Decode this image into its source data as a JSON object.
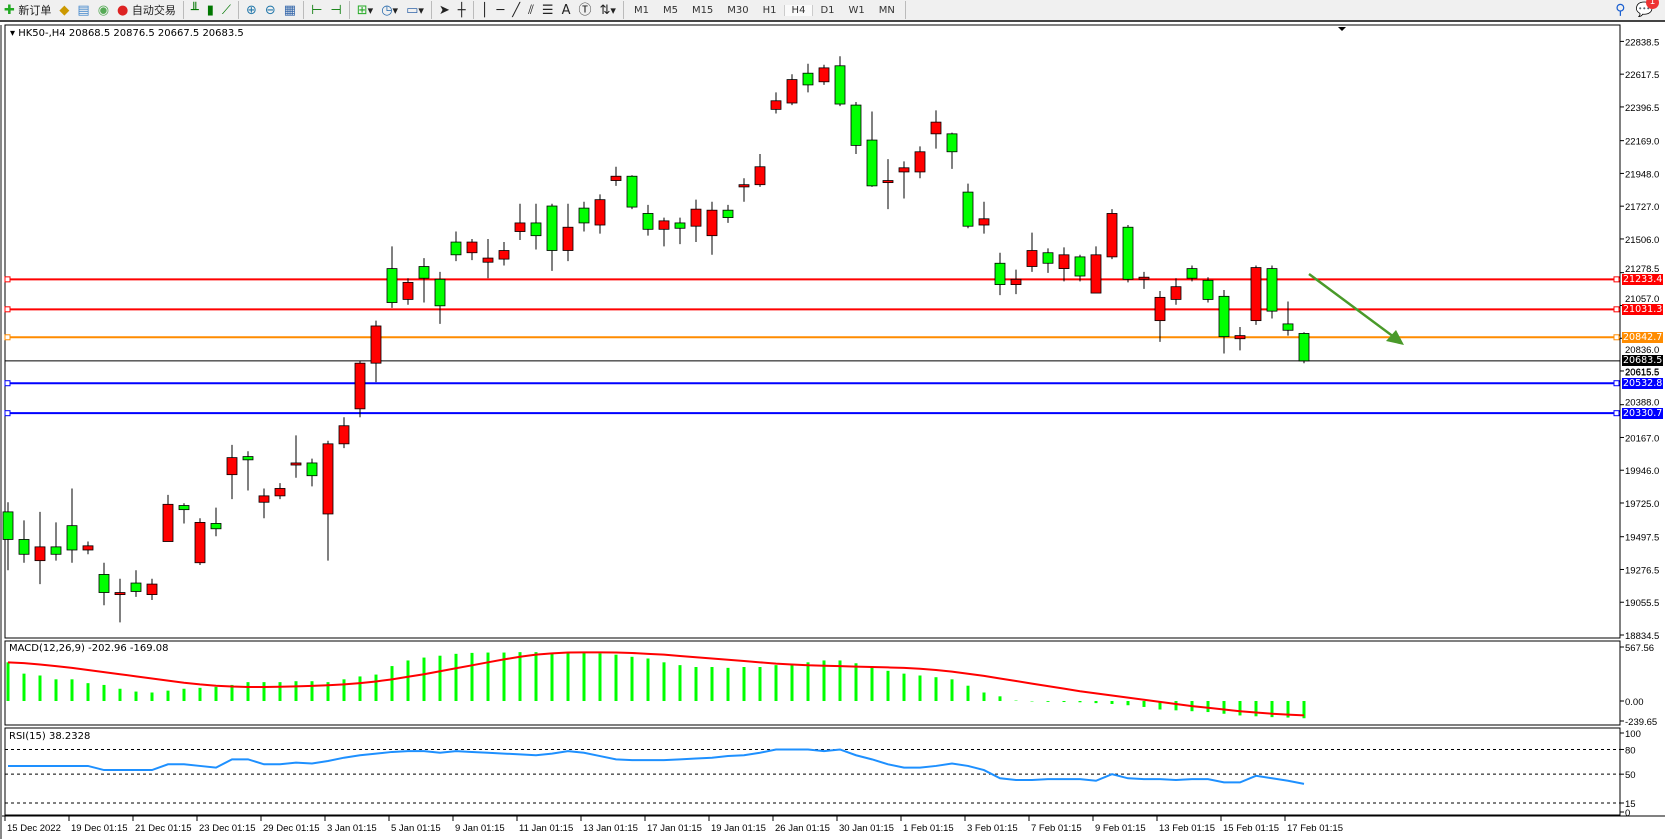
{
  "toolbar": {
    "new_order": "新订单",
    "auto_trading": "自动交易",
    "icons": [
      "new-order-icon",
      "expert-folder-icon",
      "terminal-icon",
      "signal-icon",
      "auto-trading-icon",
      "bar-chart-icon",
      "candle-chart-icon",
      "line-chart-icon",
      "zoom-in-icon",
      "zoom-out-icon",
      "tile-windows-icon",
      "autoscroll-icon",
      "chart-shift-icon",
      "new-chart-icon",
      "period-clock-icon",
      "templates-icon",
      "cursor-icon",
      "crosshair-icon",
      "vertical-line-icon",
      "horizontal-line-icon",
      "trendline-icon",
      "equidistant-channel-icon",
      "fibonacci-icon",
      "text-icon",
      "text-label-icon",
      "arrows-icon"
    ],
    "timeframes": [
      "M1",
      "M5",
      "M15",
      "M30",
      "H1",
      "H4",
      "D1",
      "W1",
      "MN"
    ],
    "selected_timeframe": "H4",
    "notification_count": "1"
  },
  "chart_data": {
    "type": "candlestick",
    "symbol_info": "HK50-,H4  20868.5 20876.5 20667.5 20683.5",
    "colors": {
      "bull": "#ff0000",
      "bear": "#00ff00",
      "background": "#ffffff"
    },
    "ylim": [
      18834.5,
      22838.5
    ],
    "price_ticks": [
      "22838.5",
      "22617.5",
      "22396.5",
      "22169.0",
      "21948.0",
      "21727.0",
      "21506.0",
      "21278.5",
      "21057.0",
      "20836.0",
      "20615.5",
      "20388.0",
      "20167.0",
      "19946.0",
      "19725.0",
      "19497.5",
      "19276.5",
      "19055.5",
      "18834.5"
    ],
    "date_labels": [
      "15 Dec 2022",
      "19 Dec 01:15",
      "21 Dec 01:15",
      "23 Dec 01:15",
      "29 Dec 01:15",
      "3 Jan 01:15",
      "5 Jan 01:15",
      "9 Jan 01:15",
      "11 Jan 01:15",
      "13 Jan 01:15",
      "17 Jan 01:15",
      "19 Jan 01:15",
      "26 Jan 01:15",
      "30 Jan 01:15",
      "1 Feb 01:15",
      "3 Feb 01:15",
      "7 Feb 01:15",
      "9 Feb 01:15",
      "13 Feb 01:15",
      "15 Feb 01:15",
      "17 Feb 01:15"
    ],
    "ohlc": [
      [
        19665,
        19730,
        19271,
        19479
      ],
      [
        19479,
        19608,
        19322,
        19379
      ],
      [
        19336,
        19665,
        19178,
        19429
      ],
      [
        19429,
        19594,
        19336,
        19379
      ],
      [
        19572,
        19823,
        19322,
        19408
      ],
      [
        19408,
        19465,
        19379,
        19436
      ],
      [
        19243,
        19322,
        19035,
        19121
      ],
      [
        19107,
        19214,
        18920,
        19121
      ],
      [
        19185,
        19271,
        19092,
        19128
      ],
      [
        19107,
        19214,
        19071,
        19178
      ],
      [
        19465,
        19780,
        19465,
        19716
      ],
      [
        19708,
        19723,
        19587,
        19680
      ],
      [
        19322,
        19622,
        19307,
        19594
      ],
      [
        19587,
        19694,
        19501,
        19551
      ],
      [
        19916,
        20117,
        19751,
        20031
      ],
      [
        20038,
        20074,
        19809,
        20016
      ],
      [
        19730,
        19823,
        19622,
        19773
      ],
      [
        19773,
        19859,
        19751,
        19823
      ],
      [
        19981,
        20181,
        19895,
        19995
      ],
      [
        19995,
        20024,
        19837,
        19909
      ],
      [
        19651,
        20145,
        19336,
        20124
      ],
      [
        20124,
        20303,
        20095,
        20246
      ],
      [
        20360,
        20682,
        20303,
        20668
      ],
      [
        20668,
        20955,
        20540,
        20919
      ],
      [
        21306,
        21456,
        21041,
        21077
      ],
      [
        21098,
        21241,
        21062,
        21213
      ],
      [
        21320,
        21377,
        21077,
        21241
      ],
      [
        21234,
        21284,
        20933,
        21055
      ],
      [
        21485,
        21556,
        21356,
        21399
      ],
      [
        21413,
        21506,
        21363,
        21485
      ],
      [
        21349,
        21506,
        21241,
        21377
      ],
      [
        21370,
        21485,
        21327,
        21428
      ],
      [
        21556,
        21743,
        21499,
        21614
      ],
      [
        21614,
        21743,
        21435,
        21528
      ],
      [
        21728,
        21743,
        21291,
        21428
      ],
      [
        21428,
        21743,
        21356,
        21585
      ],
      [
        21714,
        21757,
        21556,
        21614
      ],
      [
        21600,
        21807,
        21542,
        21771
      ],
      [
        21900,
        21993,
        21864,
        21929
      ],
      [
        21929,
        21936,
        21707,
        21721
      ],
      [
        21678,
        21736,
        21528,
        21571
      ],
      [
        21571,
        21650,
        21456,
        21628
      ],
      [
        21614,
        21650,
        21471,
        21578
      ],
      [
        21592,
        21771,
        21485,
        21707
      ],
      [
        21528,
        21757,
        21399,
        21700
      ],
      [
        21700,
        21736,
        21614,
        21650
      ],
      [
        21857,
        21915,
        21757,
        21872
      ],
      [
        21872,
        22079,
        21857,
        21993
      ],
      [
        22380,
        22495,
        22352,
        22438
      ],
      [
        22423,
        22617,
        22409,
        22581
      ],
      [
        22624,
        22688,
        22495,
        22545
      ],
      [
        22566,
        22681,
        22545,
        22660
      ],
      [
        22674,
        22738,
        22402,
        22416
      ],
      [
        22409,
        22430,
        22079,
        22137
      ],
      [
        22173,
        22366,
        21857,
        21864
      ],
      [
        21886,
        22044,
        21707,
        21900
      ],
      [
        21958,
        22029,
        21779,
        21986
      ],
      [
        21958,
        22130,
        21915,
        22094
      ],
      [
        22215,
        22373,
        22115,
        22294
      ],
      [
        22215,
        22223,
        21979,
        22094
      ],
      [
        21822,
        21879,
        21578,
        21592
      ],
      [
        21600,
        21757,
        21542,
        21642
      ],
      [
        21342,
        21413,
        21127,
        21198
      ],
      [
        21198,
        21299,
        21134,
        21234
      ],
      [
        21320,
        21549,
        21284,
        21428
      ],
      [
        21413,
        21442,
        21277,
        21342
      ],
      [
        21306,
        21449,
        21220,
        21399
      ],
      [
        21385,
        21399,
        21220,
        21256
      ],
      [
        21141,
        21456,
        21141,
        21399
      ],
      [
        21385,
        21707,
        21370,
        21678
      ],
      [
        21585,
        21600,
        21213,
        21234
      ],
      [
        21234,
        21284,
        21169,
        21248
      ],
      [
        20955,
        21155,
        20812,
        21112
      ],
      [
        21098,
        21241,
        21062,
        21184
      ],
      [
        21306,
        21327,
        21220,
        21241
      ],
      [
        21227,
        21248,
        21077,
        21098
      ],
      [
        21119,
        21162,
        20733,
        20847
      ],
      [
        20833,
        20912,
        20754,
        20854
      ],
      [
        20955,
        21327,
        20926,
        21313
      ],
      [
        21306,
        21327,
        20969,
        21019
      ],
      [
        20933,
        21084,
        20854,
        20890
      ],
      [
        20868.5,
        20876.5,
        20667.5,
        20683.5
      ]
    ],
    "horizontal_lines": [
      {
        "price": "21233.4",
        "color": "#ff0000"
      },
      {
        "price": "21031.3",
        "color": "#ff0000"
      },
      {
        "price": "20842.7",
        "color": "#ff8c00"
      },
      {
        "price": "20683.5",
        "color": "#000000"
      },
      {
        "price": "20532.8",
        "color": "#0000ff"
      },
      {
        "price": "20330.7",
        "color": "#0000ff"
      }
    ],
    "bid_tick_label": "20615.5",
    "annotation_arrow": {
      "color": "#4a9a2a",
      "direction": "down-right"
    },
    "macd": {
      "label": "MACD(12,26,9) -202.96 -169.08",
      "ticks": [
        "567.56",
        "0.00",
        "-239.65"
      ],
      "histogram_color": "#00ff00",
      "signal_color": "#ff0000",
      "histogram": [
        455,
        322,
        300,
        255,
        255,
        210,
        189,
        144,
        111,
        100,
        122,
        144,
        155,
        166,
        189,
        222,
        222,
        222,
        233,
        233,
        222,
        255,
        289,
        311,
        411,
        477,
        511,
        533,
        555,
        566,
        570,
        570,
        575,
        575,
        570,
        565,
        565,
        560,
        545,
        520,
        500,
        455,
        422,
        400,
        400,
        390,
        400,
        400,
        422,
        433,
        455,
        477,
        477,
        444,
        400,
        355,
        322,
        300,
        280,
        255,
        180,
        100,
        55,
        5,
        -5,
        -10,
        -12,
        -15,
        -25,
        -35,
        -50,
        -70,
        -100,
        -110,
        -120,
        -130,
        -150,
        -170,
        -180,
        -190,
        -195,
        -202.96
      ],
      "signal": [
        455,
        445,
        430,
        410,
        390,
        365,
        340,
        315,
        290,
        265,
        240,
        215,
        195,
        180,
        170,
        165,
        165,
        168,
        172,
        178,
        185,
        195,
        210,
        230,
        255,
        285,
        315,
        350,
        385,
        420,
        455,
        490,
        520,
        545,
        560,
        570,
        572,
        572,
        570,
        565,
        555,
        545,
        530,
        515,
        500,
        485,
        470,
        455,
        440,
        430,
        420,
        415,
        410,
        405,
        400,
        395,
        390,
        380,
        365,
        345,
        320,
        295,
        265,
        235,
        205,
        175,
        145,
        115,
        90,
        65,
        40,
        15,
        -10,
        -35,
        -60,
        -80,
        -100,
        -120,
        -135,
        -150,
        -160,
        -169.08
      ]
    },
    "rsi": {
      "label": "RSI(15) 38.2328",
      "ticks": [
        "100",
        "80",
        "50",
        "15",
        "0"
      ],
      "levels": [
        80,
        50,
        15
      ],
      "color": "#1e90ff",
      "values": [
        60,
        60,
        60,
        60,
        60,
        60,
        55,
        55,
        55,
        55,
        62,
        62,
        60,
        58,
        68,
        68,
        62,
        62,
        64,
        63,
        66,
        70,
        73,
        75,
        77,
        78,
        78,
        76,
        78,
        77,
        76,
        75,
        74,
        73,
        75,
        78,
        76,
        72,
        68,
        67,
        67,
        67,
        68,
        69,
        70,
        72,
        73,
        76,
        80,
        80,
        80,
        78,
        80,
        73,
        68,
        62,
        58,
        58,
        60,
        63,
        60,
        55,
        45,
        43,
        43,
        44,
        44,
        44,
        42,
        50,
        45,
        44,
        44,
        43,
        44,
        44,
        40,
        40,
        48,
        45,
        42,
        38.23
      ]
    }
  }
}
